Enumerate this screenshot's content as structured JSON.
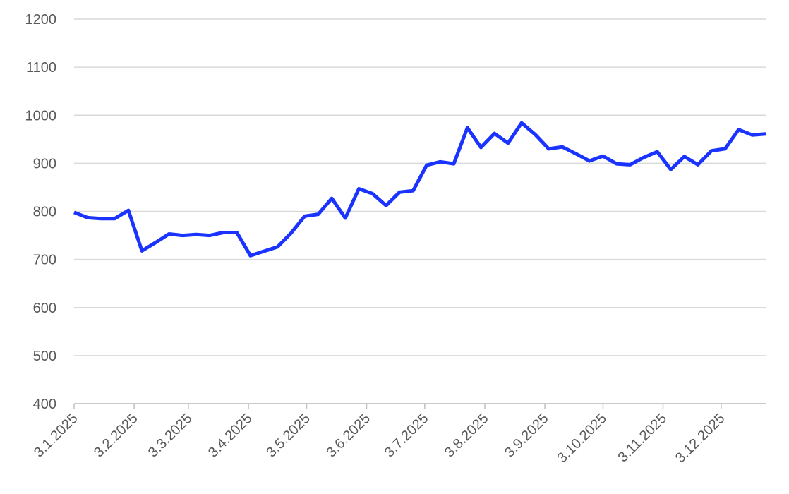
{
  "chart_data": {
    "type": "line",
    "x": [
      "2025-01-03",
      "2025-01-10",
      "2025-01-17",
      "2025-01-24",
      "2025-01-31",
      "2025-02-07",
      "2025-02-14",
      "2025-02-21",
      "2025-02-28",
      "2025-03-07",
      "2025-03-14",
      "2025-03-21",
      "2025-03-28",
      "2025-04-04",
      "2025-04-11",
      "2025-04-18",
      "2025-04-25",
      "2025-05-02",
      "2025-05-09",
      "2025-05-16",
      "2025-05-23",
      "2025-05-30",
      "2025-06-06",
      "2025-06-13",
      "2025-06-20",
      "2025-06-27",
      "2025-07-04",
      "2025-07-11",
      "2025-07-18",
      "2025-07-25",
      "2025-08-01",
      "2025-08-08",
      "2025-08-15",
      "2025-08-22",
      "2025-08-29",
      "2025-09-05",
      "2025-09-12",
      "2025-09-19",
      "2025-09-26",
      "2025-10-03",
      "2025-10-10",
      "2025-10-17",
      "2025-10-24",
      "2025-10-31",
      "2025-11-07",
      "2025-11-14",
      "2025-11-21",
      "2025-11-28",
      "2025-12-05",
      "2025-12-12",
      "2025-12-19",
      "2025-12-26"
    ],
    "series": [
      {
        "color": "#1a33ff",
        "values": [
          798,
          787,
          785,
          785,
          802,
          718,
          735,
          753,
          750,
          752,
          750,
          756,
          756,
          708,
          717,
          726,
          755,
          790,
          794,
          827,
          786,
          847,
          837,
          812,
          840,
          843,
          896,
          903,
          899,
          974,
          933,
          962,
          942,
          984,
          960,
          930,
          934,
          920,
          905,
          915,
          899,
          897,
          912,
          924,
          887,
          914,
          897,
          926,
          930,
          970,
          959,
          961
        ]
      }
    ],
    "xlim": [
      "2025-01-03",
      "2025-12-26"
    ],
    "xticks": [
      {
        "value": "2025-01-03",
        "label": "3.1.2025"
      },
      {
        "value": "2025-02-03",
        "label": "3.2.2025"
      },
      {
        "value": "2025-03-03",
        "label": "3.3.2025"
      },
      {
        "value": "2025-04-03",
        "label": "3.4.2025"
      },
      {
        "value": "2025-05-03",
        "label": "3.5.2025"
      },
      {
        "value": "2025-06-03",
        "label": "3.6.2025"
      },
      {
        "value": "2025-07-03",
        "label": "3.7.2025"
      },
      {
        "value": "2025-08-03",
        "label": "3.8.2025"
      },
      {
        "value": "2025-09-03",
        "label": "3.9.2025"
      },
      {
        "value": "2025-10-03",
        "label": "3.10.2025"
      },
      {
        "value": "2025-11-03",
        "label": "3.11.2025"
      },
      {
        "value": "2025-12-03",
        "label": "3.12.2025"
      }
    ],
    "ylim": [
      400,
      1200
    ],
    "yticks": [
      400,
      500,
      600,
      700,
      800,
      900,
      1000,
      1100,
      1200
    ],
    "grid": true
  }
}
